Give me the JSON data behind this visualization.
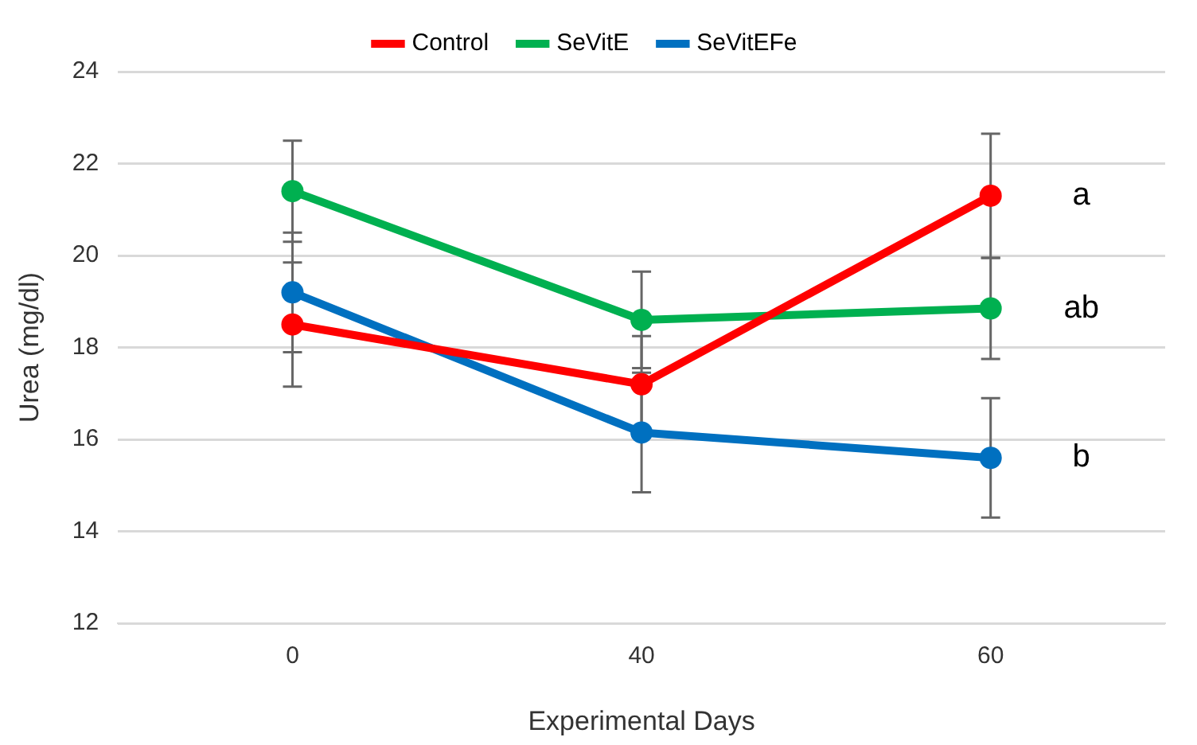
{
  "chart_data": {
    "type": "line",
    "xlabel": "Experimental Days",
    "ylabel": "Urea (mg/dl)",
    "categories": [
      "0",
      "40",
      "60"
    ],
    "series": [
      {
        "name": "Control",
        "color": "#ff0000",
        "values": [
          18.5,
          17.2,
          21.3
        ],
        "errors": [
          1.35,
          1.05,
          1.35
        ]
      },
      {
        "name": "SeVitE",
        "color": "#00b050",
        "values": [
          21.4,
          18.6,
          18.85
        ],
        "errors": [
          1.1,
          1.05,
          1.1
        ]
      },
      {
        "name": "SeVitEFe",
        "color": "#0070c0",
        "values": [
          19.2,
          16.15,
          15.6
        ],
        "errors": [
          1.3,
          1.3,
          1.3
        ]
      }
    ],
    "ylim": [
      12,
      24
    ],
    "yticks": [
      12,
      14,
      16,
      18,
      20,
      22,
      24
    ],
    "grid": "y",
    "legend": "top",
    "marker": "circle",
    "line_style": "solid",
    "annotations": [
      {
        "text": "a",
        "x": "60",
        "y": 21.3
      },
      {
        "text": "ab",
        "x": "60",
        "y": 18.85
      },
      {
        "text": "b",
        "x": "60",
        "y": 15.6
      }
    ]
  }
}
